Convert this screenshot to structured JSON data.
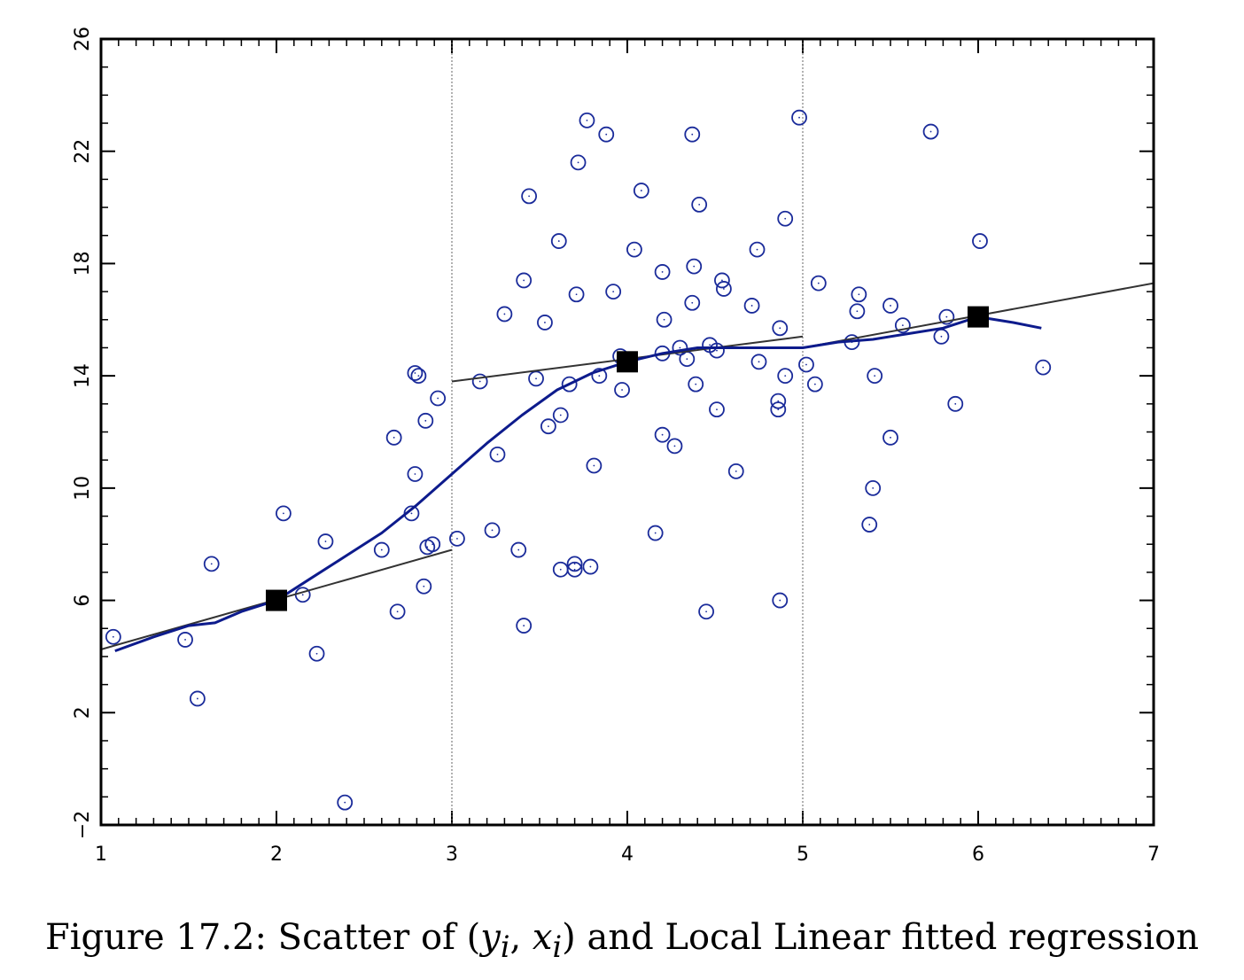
{
  "chart_data": {
    "type": "scatter",
    "title": "",
    "xlabel": "",
    "ylabel": "",
    "xlim": [
      1,
      7
    ],
    "ylim": [
      -2,
      26
    ],
    "x_ticks": [
      1,
      2,
      3,
      4,
      5,
      6,
      7
    ],
    "y_ticks": [
      -2,
      2,
      6,
      10,
      14,
      18,
      22,
      26
    ],
    "x_tick_labels": [
      "1",
      "2",
      "3",
      "4",
      "5",
      "6",
      "7"
    ],
    "y_tick_labels": [
      "−2",
      "2",
      "6",
      "10",
      "14",
      "18",
      "22",
      "26"
    ],
    "grid": false,
    "vertical_reference_lines": [
      3,
      5
    ],
    "series": [
      {
        "marker": "open-circle",
        "color": "#1a2b9a",
        "points": [
          [
            1.07,
            4.7
          ],
          [
            1.48,
            4.6
          ],
          [
            1.55,
            2.5
          ],
          [
            1.63,
            7.3
          ],
          [
            2.04,
            9.1
          ],
          [
            2.15,
            6.2
          ],
          [
            2.23,
            4.1
          ],
          [
            2.28,
            8.1
          ],
          [
            2.39,
            -1.2
          ],
          [
            2.6,
            7.8
          ],
          [
            2.67,
            11.8
          ],
          [
            2.69,
            5.6
          ],
          [
            2.77,
            9.1
          ],
          [
            2.79,
            14.1
          ],
          [
            2.79,
            10.5
          ],
          [
            2.81,
            14.0
          ],
          [
            2.84,
            6.5
          ],
          [
            2.85,
            12.4
          ],
          [
            2.86,
            7.9
          ],
          [
            2.89,
            8.0
          ],
          [
            2.92,
            13.2
          ],
          [
            3.03,
            8.2
          ],
          [
            3.16,
            13.8
          ],
          [
            3.23,
            8.5
          ],
          [
            3.26,
            11.2
          ],
          [
            3.3,
            16.2
          ],
          [
            3.38,
            7.8
          ],
          [
            3.41,
            5.1
          ],
          [
            3.41,
            17.4
          ],
          [
            3.44,
            20.4
          ],
          [
            3.48,
            13.9
          ],
          [
            3.53,
            15.9
          ],
          [
            3.55,
            12.2
          ],
          [
            3.61,
            18.8
          ],
          [
            3.62,
            12.6
          ],
          [
            3.62,
            7.1
          ],
          [
            3.67,
            13.7
          ],
          [
            3.7,
            7.3
          ],
          [
            3.7,
            7.1
          ],
          [
            3.71,
            16.9
          ],
          [
            3.72,
            21.6
          ],
          [
            3.77,
            23.1
          ],
          [
            3.79,
            7.2
          ],
          [
            3.81,
            10.8
          ],
          [
            3.84,
            14.0
          ],
          [
            3.88,
            22.6
          ],
          [
            3.92,
            17.0
          ],
          [
            3.96,
            14.7
          ],
          [
            3.97,
            13.5
          ],
          [
            4.04,
            18.5
          ],
          [
            4.08,
            20.6
          ],
          [
            4.16,
            8.4
          ],
          [
            4.2,
            11.9
          ],
          [
            4.2,
            17.7
          ],
          [
            4.2,
            14.8
          ],
          [
            4.21,
            16.0
          ],
          [
            4.27,
            11.5
          ],
          [
            4.3,
            15.0
          ],
          [
            4.34,
            14.6
          ],
          [
            4.37,
            16.6
          ],
          [
            4.37,
            22.6
          ],
          [
            4.38,
            17.9
          ],
          [
            4.39,
            13.7
          ],
          [
            4.41,
            20.1
          ],
          [
            4.45,
            5.6
          ],
          [
            4.47,
            15.1
          ],
          [
            4.51,
            12.8
          ],
          [
            4.51,
            14.9
          ],
          [
            4.54,
            17.4
          ],
          [
            4.55,
            17.1
          ],
          [
            4.62,
            10.6
          ],
          [
            4.71,
            16.5
          ],
          [
            4.74,
            18.5
          ],
          [
            4.75,
            14.5
          ],
          [
            4.86,
            12.8
          ],
          [
            4.86,
            13.1
          ],
          [
            4.87,
            6.0
          ],
          [
            4.87,
            15.7
          ],
          [
            4.9,
            14.0
          ],
          [
            4.9,
            19.6
          ],
          [
            4.98,
            23.2
          ],
          [
            5.02,
            14.4
          ],
          [
            5.07,
            13.7
          ],
          [
            5.09,
            17.3
          ],
          [
            5.28,
            15.2
          ],
          [
            5.31,
            16.3
          ],
          [
            5.32,
            16.9
          ],
          [
            5.38,
            8.7
          ],
          [
            5.4,
            10.0
          ],
          [
            5.41,
            14.0
          ],
          [
            5.5,
            11.8
          ],
          [
            5.5,
            16.5
          ],
          [
            5.57,
            15.8
          ],
          [
            5.73,
            22.7
          ],
          [
            5.79,
            15.4
          ],
          [
            5.82,
            16.1
          ],
          [
            5.87,
            13.0
          ],
          [
            6.01,
            18.8
          ],
          [
            6.37,
            14.3
          ]
        ]
      },
      {
        "name": "",
        "mark": "local-linear-fit",
        "color": "#0d1b8c",
        "points": [
          [
            1.08,
            4.2
          ],
          [
            1.3,
            4.7
          ],
          [
            1.5,
            5.1
          ],
          [
            1.65,
            5.2
          ],
          [
            1.8,
            5.6
          ],
          [
            2.0,
            6.0
          ],
          [
            2.2,
            6.8
          ],
          [
            2.4,
            7.6
          ],
          [
            2.6,
            8.4
          ],
          [
            2.8,
            9.4
          ],
          [
            3.0,
            10.5
          ],
          [
            3.2,
            11.6
          ],
          [
            3.4,
            12.6
          ],
          [
            3.6,
            13.5
          ],
          [
            3.8,
            14.1
          ],
          [
            4.0,
            14.5
          ],
          [
            4.2,
            14.8
          ],
          [
            4.4,
            15.0
          ],
          [
            4.6,
            15.0
          ],
          [
            4.8,
            15.0
          ],
          [
            5.0,
            15.0
          ],
          [
            5.2,
            15.2
          ],
          [
            5.4,
            15.3
          ],
          [
            5.6,
            15.5
          ],
          [
            5.8,
            15.7
          ],
          [
            6.0,
            16.1
          ],
          [
            6.2,
            15.9
          ],
          [
            6.36,
            15.7
          ]
        ]
      },
      {
        "mark": "local-tangent-lines",
        "color": "#333333",
        "segments": [
          [
            [
              0.97,
              4.2
            ],
            [
              3.0,
              7.8
            ]
          ],
          [
            [
              3.0,
              13.8
            ],
            [
              5.0,
              15.4
            ]
          ],
          [
            [
              5.0,
              15.0
            ],
            [
              7.0,
              17.3
            ]
          ]
        ]
      },
      {
        "mark": "filled-square",
        "color": "#000000",
        "points": [
          [
            2.0,
            6.0
          ],
          [
            4.0,
            14.5
          ],
          [
            6.0,
            16.1
          ]
        ]
      }
    ]
  },
  "caption": {
    "prefix": "Figure 17.2: Scatter of (",
    "var_y": "y",
    "sub_y": "i",
    "comma": ", ",
    "var_x": "x",
    "sub_x": "i",
    "suffix": ") and Local Linear fitted regression"
  }
}
